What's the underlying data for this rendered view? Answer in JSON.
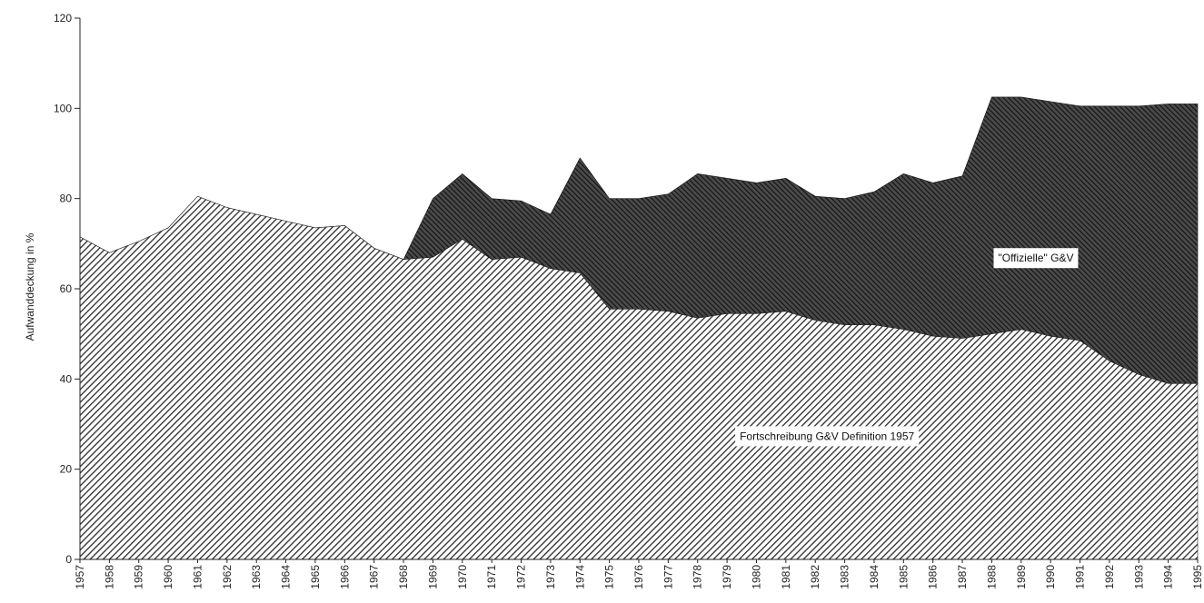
{
  "chart_data": {
    "type": "area",
    "title": "",
    "xlabel": "",
    "ylabel": "Aufwanddeckung in %",
    "ylim": [
      0,
      120
    ],
    "yticks": [
      0,
      20,
      40,
      60,
      80,
      100,
      120
    ],
    "grid": false,
    "legend": "none",
    "x": [
      "1957",
      "1958",
      "1959",
      "1960",
      "1961",
      "1962",
      "1963",
      "1964",
      "1965",
      "1966",
      "1967",
      "1968",
      "1969",
      "1970",
      "1971",
      "1972",
      "1973",
      "1974",
      "1975",
      "1976",
      "1977",
      "1978",
      "1979",
      "1980",
      "1981",
      "1982",
      "1983",
      "1984",
      "1985",
      "1986",
      "1987",
      "1988",
      "1989",
      "1990",
      "1991",
      "1992",
      "1993",
      "1994",
      "1995"
    ],
    "series": [
      {
        "name": "Fortschreibung G&V Definition 1957",
        "color": "#8c8c8c",
        "values": [
          71.5,
          68,
          70.5,
          73.5,
          80.5,
          78,
          76.5,
          75,
          73.5,
          74,
          69,
          66.5,
          67,
          71,
          66.5,
          67,
          64.5,
          63.5,
          55.5,
          55.5,
          55,
          53.5,
          54.5,
          54.5,
          55,
          53,
          52,
          52,
          51,
          49.5,
          49,
          50,
          51,
          49.5,
          48.5,
          44,
          41,
          39,
          39
        ]
      },
      {
        "name": "\"Offizielle\" G&V",
        "color": "#333333",
        "values": [
          71.5,
          68,
          70.5,
          73.5,
          80.5,
          78,
          76.5,
          75,
          73.5,
          74,
          69,
          66.5,
          80,
          85.5,
          80,
          79.5,
          76.5,
          89,
          80,
          80,
          81,
          85.5,
          84.5,
          83.5,
          84.5,
          80.5,
          80,
          81.5,
          85.5,
          83.5,
          85,
          102.5,
          102.5,
          101.5,
          100.5,
          100.5,
          100.5,
          101,
          101
        ]
      }
    ]
  }
}
